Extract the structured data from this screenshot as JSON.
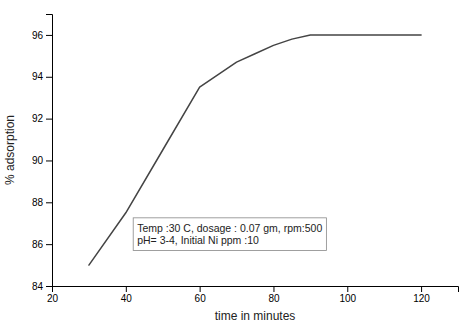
{
  "chart_data": {
    "type": "line",
    "x": [
      30,
      40,
      50,
      60,
      65,
      70,
      75,
      80,
      85,
      90,
      100,
      110,
      120
    ],
    "values": [
      85.0,
      87.5,
      90.5,
      93.5,
      94.1,
      94.7,
      95.1,
      95.5,
      95.8,
      96.0,
      96.0,
      96.0,
      96.0
    ],
    "color": "#444444",
    "xlabel": "time in minutes",
    "ylabel": "% adsorption",
    "xlim": [
      20,
      130
    ],
    "ylim": [
      84,
      97
    ],
    "xticks": [
      20,
      40,
      60,
      80,
      100,
      120
    ],
    "yticks": [
      84,
      86,
      88,
      90,
      92,
      94,
      96
    ],
    "grid": false,
    "annotations": [
      {
        "text": "Temp :30 C, dosage : 0.07 gm, rpm:500\npH= 3-4, Initial Ni ppm :10",
        "x": 42,
        "y": 85.7
      }
    ]
  }
}
